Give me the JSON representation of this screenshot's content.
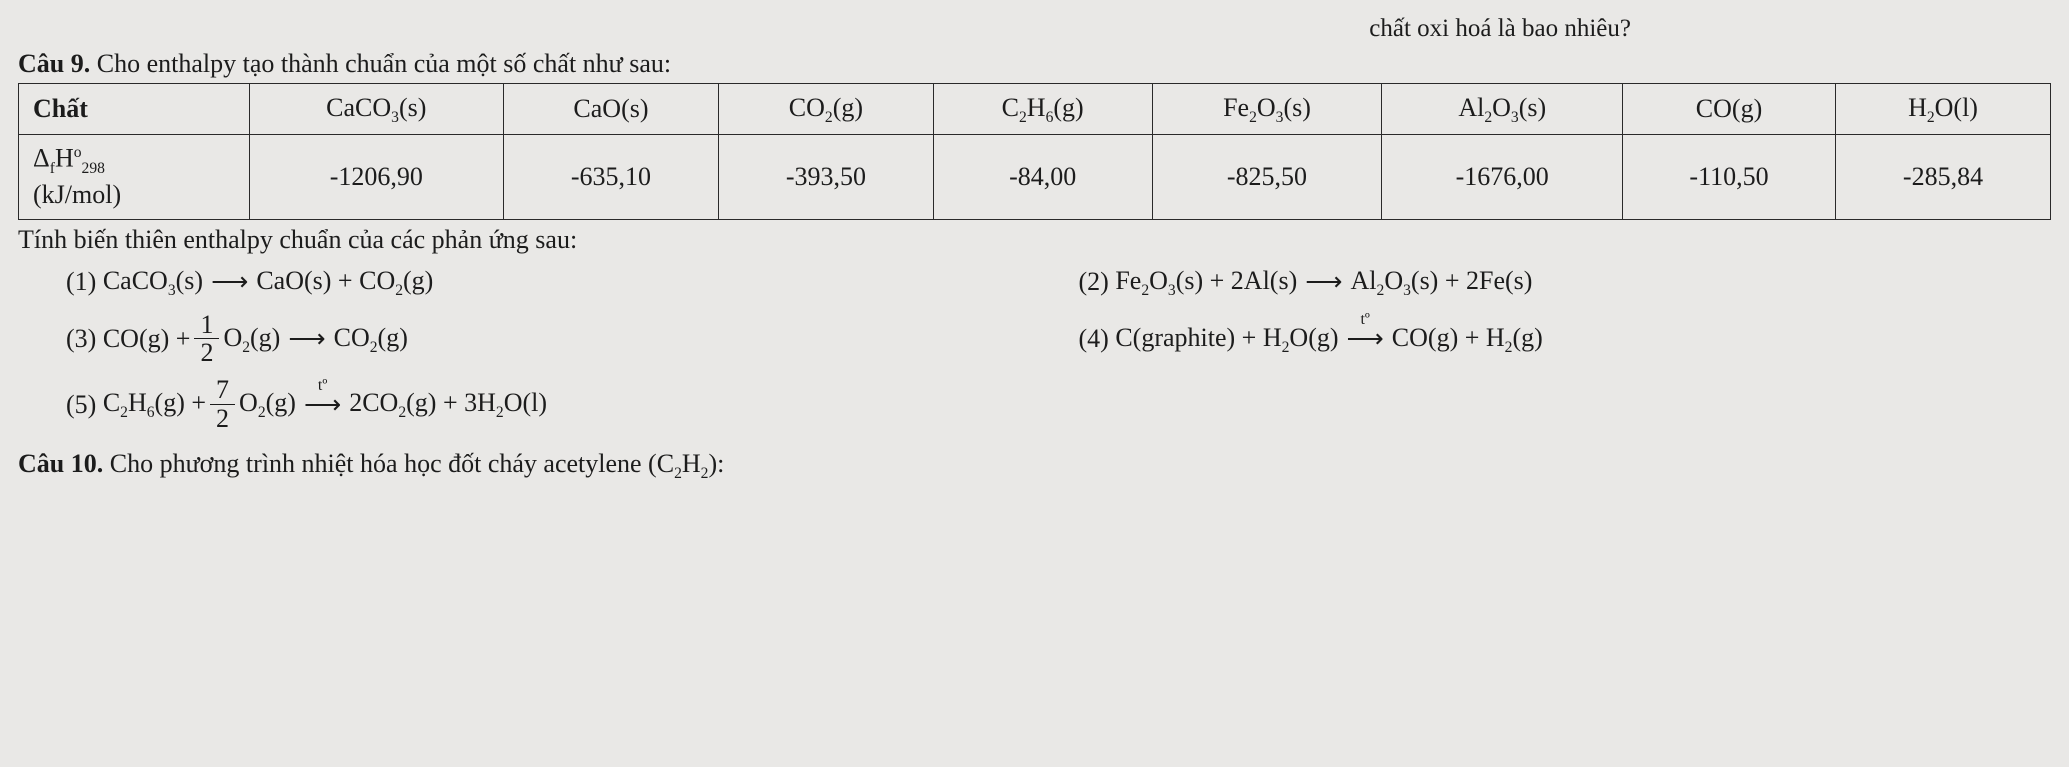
{
  "header": {
    "top_fragment": "chất oxi hoá là bao nhiêu?",
    "cau9_label": "Câu 9.",
    "cau9_text": "Cho enthalpy tạo thành chuẩn của một số chất như sau:"
  },
  "table": {
    "row_header_chat": "Chất",
    "row_header_dfh_html": "Δ<span class=\"sub\">f</span>H<span class=\"sup\">o</span><span class=\"sub\">298</span>",
    "row_header_dfh_unit": "(kJ/mol)",
    "cols": [
      {
        "label_html": "CaCO<span class=\"sub\">3</span>(s)",
        "value": "-1206,90"
      },
      {
        "label_html": "CaO(s)",
        "value": "-635,10"
      },
      {
        "label_html": "CO<span class=\"sub\">2</span>(g)",
        "value": "-393,50"
      },
      {
        "label_html": "C<span class=\"sub\">2</span>H<span class=\"sub\">6</span>(g)",
        "value": "-84,00"
      },
      {
        "label_html": "Fe<span class=\"sub\">2</span>O<span class=\"sub\">3</span>(s)",
        "value": "-825,50"
      },
      {
        "label_html": "Al<span class=\"sub\">2</span>O<span class=\"sub\">3</span>(s)",
        "value": "-1676,00"
      },
      {
        "label_html": "CO(g)",
        "value": "-110,50"
      },
      {
        "label_html": "H<span class=\"sub\">2</span>O(l)",
        "value": "-285,84"
      }
    ]
  },
  "mid_text": "Tính biến thiên enthalpy chuẩn của các phản ứng sau:",
  "reactions": {
    "arrow": "⟶",
    "t_label": "tº",
    "r1": {
      "num": "(1)",
      "lhs_html": "CaCO<span class=\"sub\">3</span>(s)",
      "rhs_html": "CaO(s) + CO<span class=\"sub\">2</span>(g)"
    },
    "r2": {
      "num": "(2)",
      "lhs_html": "Fe<span class=\"sub\">2</span>O<span class=\"sub\">3</span>(s)  +  2Al(s)",
      "rhs_html": "Al<span class=\"sub\">2</span>O<span class=\"sub\">3</span>(s)  +  2Fe(s)"
    },
    "r3": {
      "num": "(3)",
      "lhs_pre_html": "CO(g)  +",
      "frac_num": "1",
      "frac_den": "2",
      "lhs_post_html": "O<span class=\"sub\">2</span>(g)",
      "rhs_html": "CO<span class=\"sub\">2</span>(g)"
    },
    "r4": {
      "num": "(4)",
      "lhs_html": "C(graphite) + H<span class=\"sub\">2</span>O(g)",
      "rhs_html": "CO(g) + H<span class=\"sub\">2</span>(g)"
    },
    "r5": {
      "num": "(5)",
      "lhs_pre_html": "C<span class=\"sub\">2</span>H<span class=\"sub\">6</span>(g)  +",
      "frac_num": "7",
      "frac_den": "2",
      "lhs_post_html": "O<span class=\"sub\">2</span>(g)",
      "rhs_html": "2CO<span class=\"sub\">2</span>(g) + 3H<span class=\"sub\">2</span>O(l)"
    }
  },
  "footer": {
    "cau10_label": "Câu 10.",
    "cau10_text_html": "Cho phương trình nhiệt hóa học đốt cháy acetylene (C<span class=\"sub\">2</span>H<span class=\"sub\">2</span>):"
  }
}
